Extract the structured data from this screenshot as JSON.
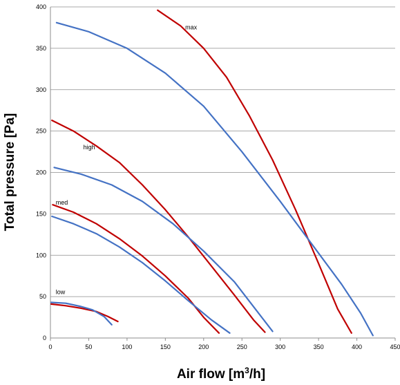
{
  "chart_data": {
    "type": "line",
    "xlabel": "Air flow [m³/h]",
    "xlabel_main": "Air flow [m",
    "xlabel_sup": "3",
    "xlabel_end": "/h]",
    "ylabel": "Total pressure [Pa]",
    "xlim": [
      0,
      450
    ],
    "ylim": [
      0,
      400
    ],
    "xticks": [
      0,
      50,
      100,
      150,
      200,
      250,
      300,
      350,
      400,
      450
    ],
    "yticks": [
      0,
      50,
      100,
      150,
      200,
      250,
      300,
      350,
      400
    ],
    "grid": "horizontal",
    "colors": {
      "red": "#c00000",
      "blue": "#4472c4",
      "grid": "#8c8c8c"
    },
    "annotations": [
      {
        "text": "max",
        "x": 176,
        "y": 373
      },
      {
        "text": "high",
        "x": 43,
        "y": 228
      },
      {
        "text": "med",
        "x": 7,
        "y": 161
      },
      {
        "text": "low",
        "x": 7,
        "y": 53
      }
    ],
    "series": [
      {
        "color": "#c00000",
        "x": [
          140,
          170,
          200,
          230,
          260,
          290,
          320,
          350,
          375,
          393
        ],
        "y": [
          396,
          377,
          350,
          315,
          268,
          215,
          155,
          90,
          35,
          6
        ]
      },
      {
        "color": "#4472c4",
        "x": [
          8,
          50,
          100,
          150,
          200,
          250,
          300,
          340,
          380,
          405,
          421
        ],
        "y": [
          381,
          370,
          350,
          320,
          280,
          225,
          165,
          115,
          65,
          30,
          3
        ]
      },
      {
        "color": "#c00000",
        "x": [
          2,
          30,
          60,
          90,
          120,
          150,
          180,
          210,
          240,
          265,
          280
        ],
        "y": [
          263,
          250,
          232,
          212,
          185,
          155,
          122,
          87,
          52,
          22,
          7
        ]
      },
      {
        "color": "#4472c4",
        "x": [
          5,
          40,
          80,
          120,
          160,
          200,
          240,
          270,
          290
        ],
        "y": [
          206,
          198,
          185,
          165,
          138,
          105,
          68,
          32,
          8
        ]
      },
      {
        "color": "#c00000",
        "x": [
          3,
          30,
          60,
          90,
          120,
          150,
          180,
          200,
          220
        ],
        "y": [
          161,
          152,
          138,
          120,
          99,
          75,
          48,
          25,
          6
        ]
      },
      {
        "color": "#4472c4",
        "x": [
          2,
          30,
          60,
          90,
          120,
          150,
          180,
          210,
          234
        ],
        "y": [
          147,
          138,
          126,
          110,
          91,
          69,
          45,
          22,
          6
        ]
      },
      {
        "color": "#c00000",
        "x": [
          1,
          20,
          40,
          60,
          75,
          88
        ],
        "y": [
          41,
          39,
          36,
          32,
          26,
          20
        ]
      },
      {
        "color": "#4472c4",
        "x": [
          1,
          20,
          40,
          55,
          70,
          80
        ],
        "y": [
          43,
          42,
          38,
          34,
          26,
          16
        ]
      }
    ]
  }
}
